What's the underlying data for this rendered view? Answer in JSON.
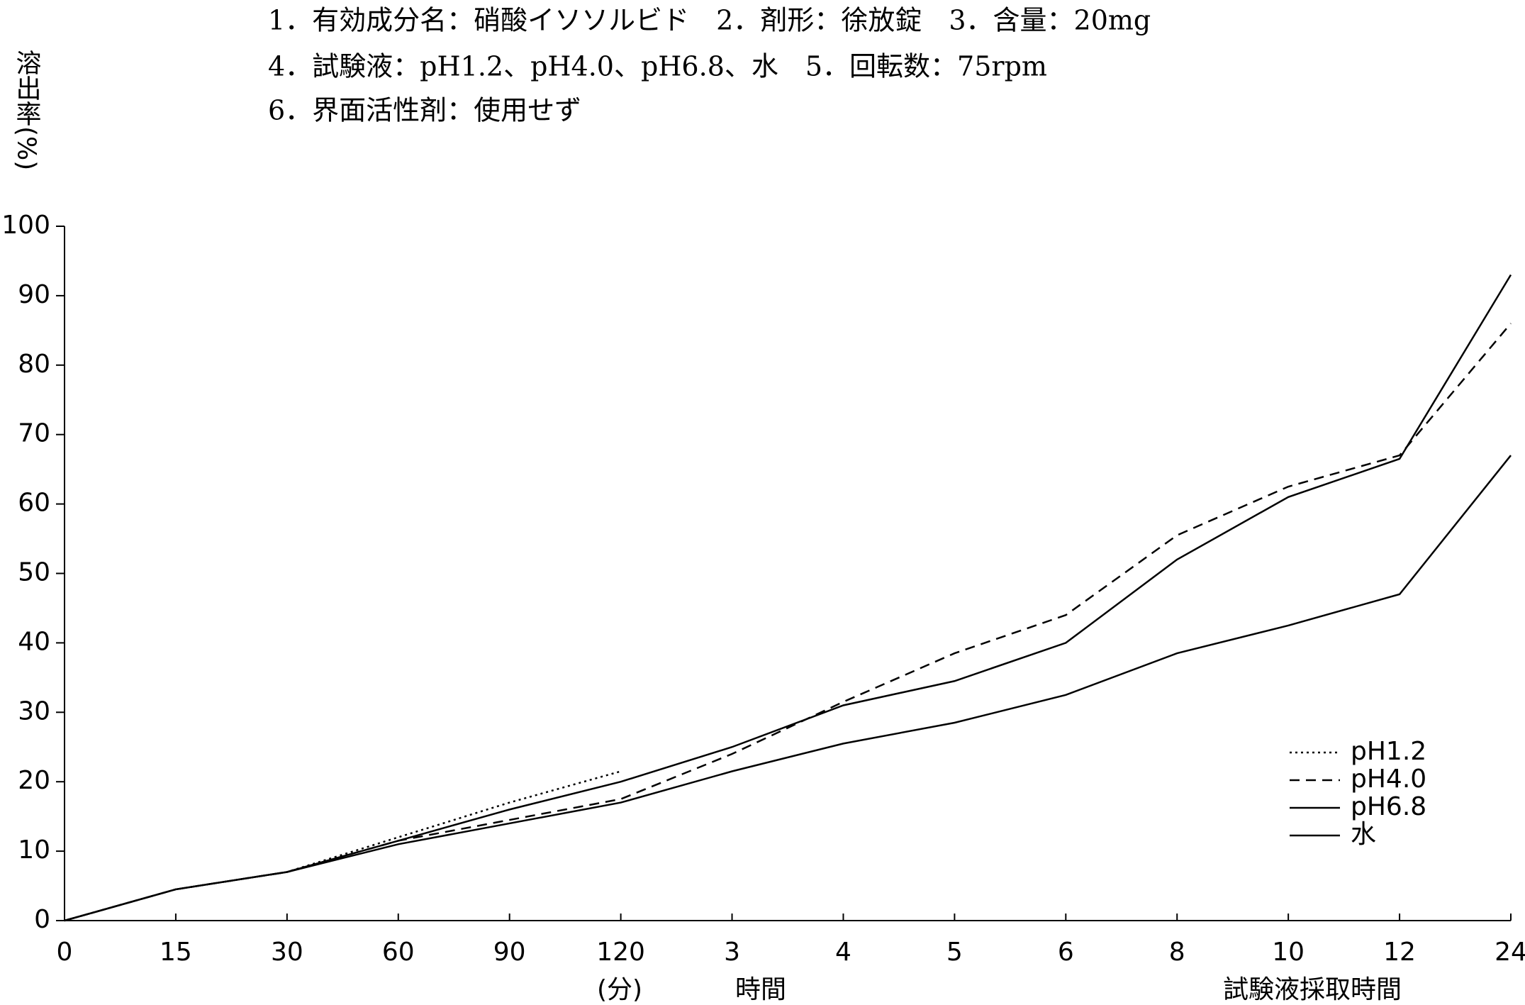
{
  "chart_data": {
    "type": "line",
    "title_lines": [
      "1．有効成分名：硝酸イソソルビド　2．剤形：徐放錠　3．含量：20mg",
      "4．試験液：pH1.2、pH4.0、pH6.8、水　5．回転数：75rpm",
      "6．界面活性剤：使用せず"
    ],
    "y_label": "溶出率(%)",
    "x_labels": [
      "(分)",
      "時間",
      "試験液採取時間"
    ],
    "categories": [
      "0",
      "15",
      "30",
      "60",
      "90",
      "120",
      "3",
      "4",
      "5",
      "6",
      "8",
      "10",
      "12",
      "24"
    ],
    "series": [
      {
        "name": "pH1.2",
        "color": "#000000",
        "dash": "dotted",
        "values": [
          0,
          4.5,
          7,
          12,
          17,
          21.5,
          null,
          null,
          null,
          null,
          null,
          null,
          null,
          null
        ]
      },
      {
        "name": "pH4.0",
        "color": "#000000",
        "dash": "dashed",
        "values": [
          0,
          4.5,
          7,
          11.5,
          14.5,
          17.5,
          24,
          31.5,
          38.5,
          44,
          55.5,
          62.5,
          67,
          86
        ]
      },
      {
        "name": "pH6.8",
        "color": "#000000",
        "dash": "solid",
        "values": [
          0,
          4.5,
          7,
          11.5,
          16,
          20,
          25,
          31,
          34.5,
          40,
          52,
          61,
          66.5,
          93
        ]
      },
      {
        "name": "水",
        "color": "#000000",
        "dash": "solid",
        "values": [
          0,
          4.5,
          7,
          11,
          14,
          17,
          21.5,
          25.5,
          28.5,
          32.5,
          38.5,
          42.5,
          47,
          67
        ]
      }
    ],
    "ylim": [
      0,
      100
    ],
    "yticks": [
      0,
      10,
      20,
      30,
      40,
      50,
      60,
      70,
      80,
      90,
      100
    ],
    "legend": "lower right"
  }
}
